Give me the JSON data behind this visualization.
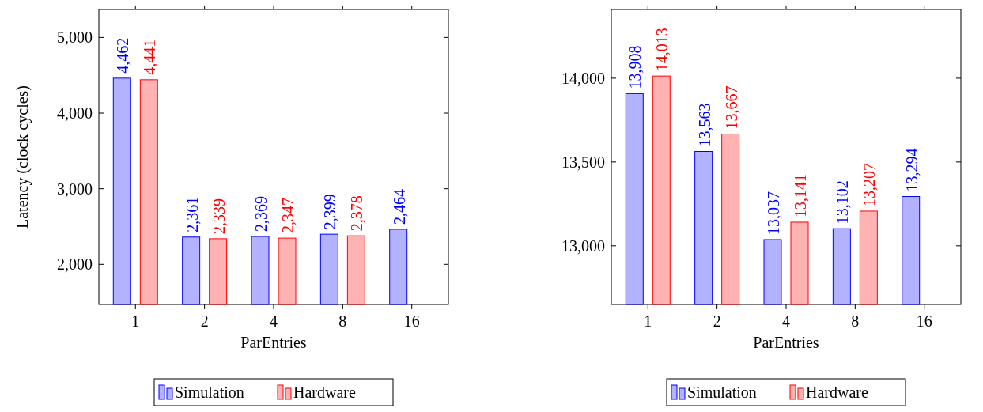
{
  "chart_data": [
    {
      "type": "bar",
      "xlabel": "ParEntries",
      "ylabel": "Latency (clock cycles)",
      "categories": [
        "1",
        "2",
        "4",
        "8",
        "16"
      ],
      "ylim": [
        1470,
        5370
      ],
      "yticks": [
        {
          "value": 2000,
          "label": "2,000"
        },
        {
          "value": 3000,
          "label": "3,000"
        },
        {
          "value": 4000,
          "label": "4,000"
        },
        {
          "value": 5000,
          "label": "5,000"
        }
      ],
      "grid": false,
      "legend": "bottom",
      "series": [
        {
          "name": "Simulation",
          "color": "#0000ff",
          "values": [
            4462,
            2361,
            2369,
            2399,
            2464
          ],
          "value_labels": [
            "4,462",
            "2,361",
            "2,369",
            "2,399",
            "2,464"
          ]
        },
        {
          "name": "Hardware",
          "color": "#ff0000",
          "values": [
            4441,
            2339,
            2347,
            2378,
            null
          ],
          "value_labels": [
            "4,441",
            "2,339",
            "2,347",
            "2,378",
            null
          ]
        }
      ]
    },
    {
      "type": "bar",
      "xlabel": "ParEntries",
      "categories": [
        "1",
        "2",
        "4",
        "8",
        "16"
      ],
      "ylim": [
        12650,
        14410
      ],
      "yticks": [
        {
          "value": 13000,
          "label": "13,000"
        },
        {
          "value": 13500,
          "label": "13,500"
        },
        {
          "value": 14000,
          "label": "14,000"
        }
      ],
      "grid": false,
      "legend": "bottom",
      "series": [
        {
          "name": "Simulation",
          "color": "#0000ff",
          "values": [
            13908,
            13563,
            13037,
            13102,
            13294
          ],
          "value_labels": [
            "13,908",
            "13,563",
            "13,037",
            "13,102",
            "13,294"
          ]
        },
        {
          "name": "Hardware",
          "color": "#ff0000",
          "values": [
            14013,
            13667,
            13141,
            13207,
            null
          ],
          "value_labels": [
            "14,013",
            "13,667",
            "13,141",
            "13,207",
            null
          ]
        }
      ]
    }
  ]
}
